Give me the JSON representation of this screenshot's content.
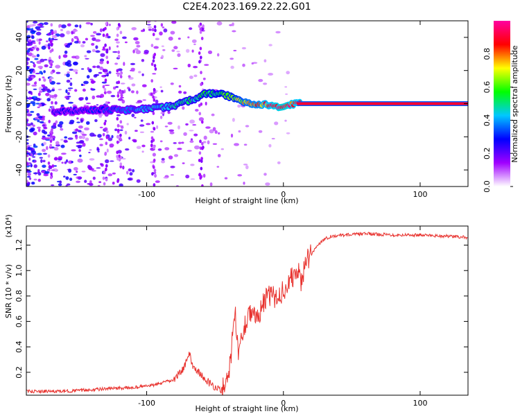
{
  "title": "C2E4.2023.169.22.22.G01",
  "chart_data": [
    {
      "type": "heatmap",
      "xlabel": "Height of straight line (km)",
      "ylabel": "Frequency (Hz)",
      "xlim": [
        -188,
        135
      ],
      "ylim": [
        -50,
        50
      ],
      "xticks": [
        -100,
        0,
        100
      ],
      "yticks": [
        -40,
        -20,
        0,
        20,
        40
      ],
      "colorbar": {
        "label": "Normalized spectral amplitude",
        "range": [
          0.0,
          1.0
        ],
        "ticks": [
          "0.0",
          "0.2",
          "0.4",
          "0.6",
          "0.8"
        ],
        "tick_values": [
          0.0,
          0.2,
          0.4,
          0.6,
          0.8
        ],
        "colormap": [
          "#ffffff",
          "#a000ff",
          "#0000ff",
          "#00c8ff",
          "#00ff00",
          "#ffff00",
          "#ff0000",
          "#ff00a0"
        ]
      },
      "ridge": {
        "x": [
          -168,
          -150,
          -130,
          -115,
          -100,
          -85,
          -75,
          -65,
          -58,
          -50,
          -42,
          -35,
          -28,
          -20,
          -10,
          0,
          8,
          20,
          60,
          100,
          135
        ],
        "frequency": [
          -5,
          -4,
          -3.5,
          -4,
          -3,
          -2,
          0,
          3,
          6,
          6,
          5,
          3,
          1,
          0,
          -1,
          -2,
          0,
          0,
          0,
          0,
          0
        ],
        "amplitude": [
          0.3,
          0.3,
          0.35,
          0.4,
          0.45,
          0.5,
          0.55,
          0.55,
          0.6,
          0.6,
          0.65,
          0.7,
          0.8,
          0.85,
          0.95,
          1.0,
          0.95,
          0.95,
          0.95,
          0.95,
          0.95
        ]
      }
    },
    {
      "type": "line",
      "xlabel": "Height of straight line (km)",
      "ylabel": "SNR (10 * v/v)",
      "yscale_label": "(x10⁴)",
      "xlim": [
        -188,
        135
      ],
      "ylim": [
        0.02,
        1.35
      ],
      "xticks": [
        -100,
        0,
        100
      ],
      "yticks": [
        0.2,
        0.4,
        0.6,
        0.8,
        1.0,
        1.2
      ],
      "ytick_labels": [
        "0.2",
        "0.4",
        "0.6",
        "0.8",
        "1.0",
        "1.2"
      ],
      "series": [
        {
          "color": "#e8322e",
          "x": [
            -188,
            -160,
            -130,
            -110,
            -95,
            -80,
            -72,
            -69,
            -66,
            -62,
            -58,
            -52,
            -45,
            -39,
            -37,
            -35,
            -33,
            -30,
            -25,
            -20,
            -15,
            -10,
            -5,
            0,
            5,
            10,
            13,
            16,
            20,
            25,
            30,
            35,
            45,
            60,
            80,
            100,
            120,
            135
          ],
          "y": [
            0.05,
            0.05,
            0.07,
            0.08,
            0.1,
            0.14,
            0.25,
            0.35,
            0.25,
            0.2,
            0.15,
            0.1,
            0.05,
            0.25,
            0.5,
            0.65,
            0.35,
            0.5,
            0.7,
            0.6,
            0.75,
            0.8,
            0.78,
            0.85,
            0.92,
            1.0,
            0.92,
            1.05,
            1.12,
            1.2,
            1.25,
            1.27,
            1.28,
            1.29,
            1.28,
            1.28,
            1.27,
            1.26
          ]
        }
      ]
    }
  ]
}
